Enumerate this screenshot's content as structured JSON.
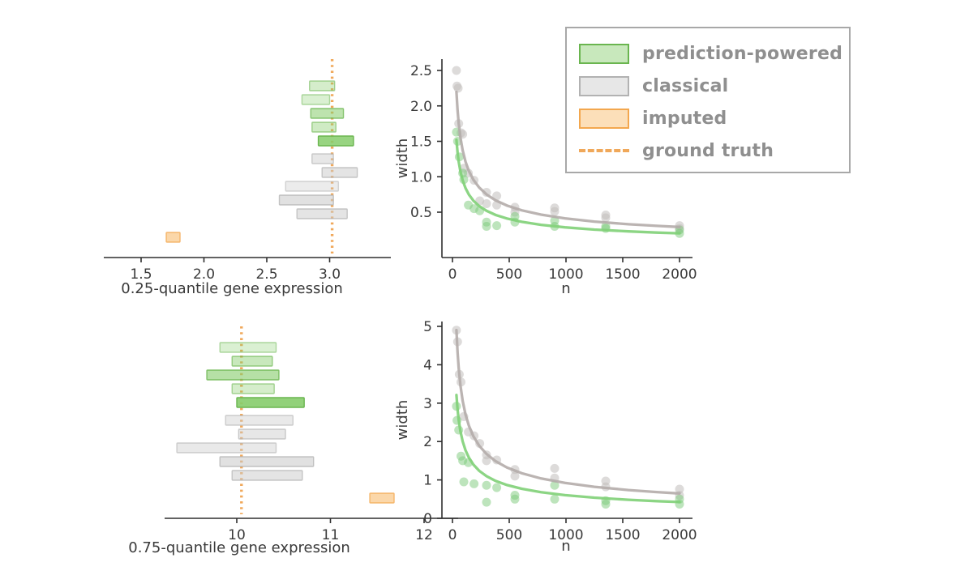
{
  "figure": {
    "background": "#ffffff"
  },
  "palette": {
    "green_fill": "#86cc6b",
    "green_edge": "#6ab54f",
    "green_point": "#7cc979",
    "green_curve": "#7fd077",
    "gray_fill": "#c9c9c9",
    "gray_edge": "#b2b2b2",
    "gray_point": "#c1bebc",
    "gray_curve": "#b4acaa",
    "orange_fill": "#f8b763",
    "orange_edge": "#f3a74e",
    "ground_truth": "#f0a85a",
    "axis": "#2f2f2f",
    "tick_text": "#3a3a3a",
    "legend_text": "#8f8f8f"
  },
  "legend": {
    "items": [
      {
        "label": "prediction-powered",
        "key": "green",
        "swatch": "box"
      },
      {
        "label": "classical",
        "key": "gray",
        "swatch": "box"
      },
      {
        "label": "imputed",
        "key": "orange",
        "swatch": "box"
      },
      {
        "label": "ground truth",
        "key": "ground_truth",
        "swatch": "dashed-line"
      }
    ]
  },
  "chart_data": [
    {
      "id": "q025-intervals",
      "type": "intervals",
      "xlabel": "0.25-quantile gene expression",
      "xticks": [
        1.5,
        2.0,
        2.5,
        3.0
      ],
      "xtick_format": 1,
      "ground_truth": 3.02,
      "series": [
        {
          "name": "prediction-powered",
          "color": "green",
          "bars": [
            {
              "lo": 2.84,
              "hi": 3.04,
              "alpha": 0.35
            },
            {
              "lo": 2.78,
              "hi": 3.0,
              "alpha": 0.3
            },
            {
              "lo": 2.85,
              "hi": 3.11,
              "alpha": 0.55
            },
            {
              "lo": 2.86,
              "hi": 3.05,
              "alpha": 0.4
            },
            {
              "lo": 2.91,
              "hi": 3.19,
              "alpha": 0.85
            }
          ]
        },
        {
          "name": "classical",
          "color": "gray",
          "bars": [
            {
              "lo": 2.86,
              "hi": 3.03,
              "alpha": 0.45
            },
            {
              "lo": 2.94,
              "hi": 3.22,
              "alpha": 0.5
            },
            {
              "lo": 2.65,
              "hi": 3.07,
              "alpha": 0.35
            },
            {
              "lo": 2.6,
              "hi": 3.03,
              "alpha": 0.55
            },
            {
              "lo": 2.74,
              "hi": 3.14,
              "alpha": 0.5
            }
          ]
        },
        {
          "name": "imputed",
          "color": "orange",
          "bars": [
            {
              "lo": 1.7,
              "hi": 1.81,
              "alpha": 0.55
            }
          ]
        }
      ]
    },
    {
      "id": "q025-width",
      "type": "scatter",
      "xlabel": "n",
      "ylabel": "width",
      "xticks": [
        0,
        500,
        1000,
        1500,
        2000
      ],
      "xtick_format": 0,
      "yticks": [
        0.5,
        1.0,
        1.5,
        2.0,
        2.5
      ],
      "ytick_format": 1,
      "series": [
        {
          "name": "classical",
          "color": "gray",
          "trend_a": 13.0,
          "points": [
            [
              35,
              2.5
            ],
            [
              40,
              2.28
            ],
            [
              50,
              2.25
            ],
            [
              55,
              1.75
            ],
            [
              75,
              1.62
            ],
            [
              90,
              1.6
            ],
            [
              100,
              1.12
            ],
            [
              140,
              1.05
            ],
            [
              190,
              0.95
            ],
            [
              240,
              0.66
            ],
            [
              300,
              0.78
            ],
            [
              300,
              0.62
            ],
            [
              390,
              0.73
            ],
            [
              390,
              0.6
            ],
            [
              550,
              0.57
            ],
            [
              550,
              0.5
            ],
            [
              900,
              0.56
            ],
            [
              900,
              0.51
            ],
            [
              1350,
              0.46
            ],
            [
              1350,
              0.42
            ],
            [
              2000,
              0.31
            ],
            [
              2000,
              0.27
            ]
          ]
        },
        {
          "name": "prediction-powered",
          "color": "green",
          "trend_a": 9.0,
          "points": [
            [
              35,
              1.63
            ],
            [
              45,
              1.5
            ],
            [
              60,
              1.28
            ],
            [
              90,
              1.05
            ],
            [
              100,
              0.96
            ],
            [
              140,
              0.6
            ],
            [
              190,
              0.55
            ],
            [
              240,
              0.52
            ],
            [
              300,
              0.36
            ],
            [
              300,
              0.3
            ],
            [
              390,
              0.31
            ],
            [
              550,
              0.44
            ],
            [
              550,
              0.36
            ],
            [
              900,
              0.38
            ],
            [
              900,
              0.3
            ],
            [
              1350,
              0.3
            ],
            [
              1350,
              0.27
            ],
            [
              2000,
              0.25
            ],
            [
              2000,
              0.2
            ]
          ]
        }
      ]
    },
    {
      "id": "q075-intervals",
      "type": "intervals",
      "xlabel": "0.75-quantile gene expression",
      "xticks": [
        10,
        11,
        12
      ],
      "xtick_format": 0,
      "ground_truth": 10.05,
      "series": [
        {
          "name": "prediction-powered",
          "color": "green",
          "bars": [
            {
              "lo": 9.82,
              "hi": 10.42,
              "alpha": 0.3
            },
            {
              "lo": 9.95,
              "hi": 10.38,
              "alpha": 0.45
            },
            {
              "lo": 9.68,
              "hi": 10.45,
              "alpha": 0.6
            },
            {
              "lo": 9.95,
              "hi": 10.4,
              "alpha": 0.35
            },
            {
              "lo": 10.0,
              "hi": 10.72,
              "alpha": 0.9
            }
          ]
        },
        {
          "name": "classical",
          "color": "gray",
          "bars": [
            {
              "lo": 9.88,
              "hi": 10.6,
              "alpha": 0.4
            },
            {
              "lo": 10.02,
              "hi": 10.52,
              "alpha": 0.45
            },
            {
              "lo": 9.36,
              "hi": 10.42,
              "alpha": 0.4
            },
            {
              "lo": 9.82,
              "hi": 10.82,
              "alpha": 0.55
            },
            {
              "lo": 9.95,
              "hi": 10.7,
              "alpha": 0.5
            }
          ]
        },
        {
          "name": "imputed",
          "color": "orange",
          "bars": [
            {
              "lo": 11.42,
              "hi": 11.68,
              "alpha": 0.55
            }
          ]
        }
      ]
    },
    {
      "id": "q075-width",
      "type": "scatter",
      "xlabel": "n",
      "ylabel": "width",
      "xticks": [
        0,
        500,
        1000,
        1500,
        2000
      ],
      "xtick_format": 0,
      "yticks": [
        0,
        1,
        2,
        3,
        4,
        5
      ],
      "ytick_format": 0,
      "series": [
        {
          "name": "classical",
          "color": "gray",
          "trend_a": 29.0,
          "points": [
            [
              35,
              4.9
            ],
            [
              45,
              4.6
            ],
            [
              60,
              3.75
            ],
            [
              75,
              3.55
            ],
            [
              100,
              2.65
            ],
            [
              140,
              2.25
            ],
            [
              190,
              2.15
            ],
            [
              240,
              1.95
            ],
            [
              300,
              1.65
            ],
            [
              300,
              1.5
            ],
            [
              390,
              1.52
            ],
            [
              550,
              1.27
            ],
            [
              550,
              1.1
            ],
            [
              900,
              1.3
            ],
            [
              900,
              1.05
            ],
            [
              1350,
              0.97
            ],
            [
              1350,
              0.82
            ],
            [
              2000,
              0.76
            ],
            [
              2000,
              0.6
            ]
          ]
        },
        {
          "name": "prediction-powered",
          "color": "green",
          "trend_a": 19.0,
          "points": [
            [
              35,
              2.92
            ],
            [
              40,
              2.55
            ],
            [
              55,
              2.3
            ],
            [
              75,
              1.62
            ],
            [
              90,
              1.5
            ],
            [
              100,
              0.95
            ],
            [
              140,
              1.45
            ],
            [
              190,
              0.9
            ],
            [
              300,
              0.86
            ],
            [
              300,
              0.42
            ],
            [
              390,
              0.8
            ],
            [
              550,
              0.6
            ],
            [
              550,
              0.5
            ],
            [
              900,
              0.86
            ],
            [
              900,
              0.5
            ],
            [
              1350,
              0.46
            ],
            [
              1350,
              0.37
            ],
            [
              2000,
              0.5
            ],
            [
              2000,
              0.37
            ]
          ]
        }
      ]
    }
  ]
}
